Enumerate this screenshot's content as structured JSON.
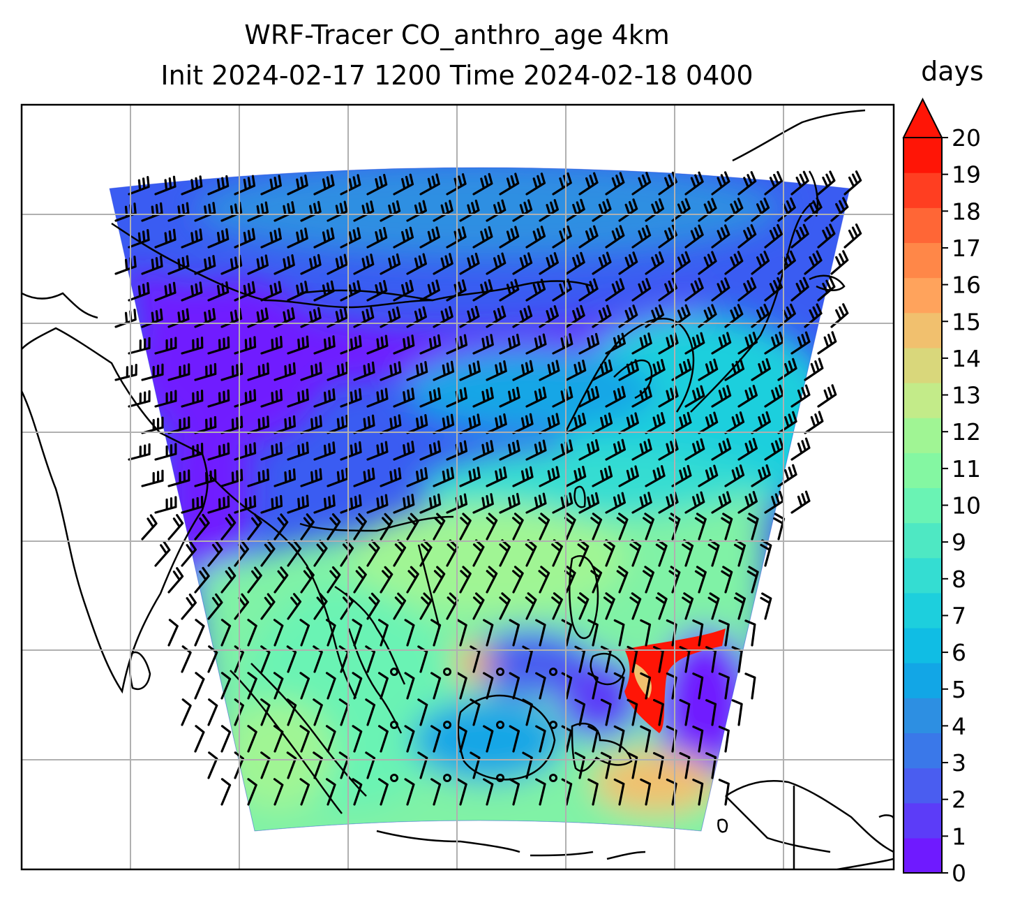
{
  "title": {
    "line1": "WRF-Tracer CO_anthro_age 4km",
    "line2": "Init 2024-02-17 1200 Time 2024-02-18 0400"
  },
  "colorbar": {
    "label": "days",
    "min": 0,
    "max": 20,
    "extend": "max",
    "ticks": [
      "0",
      "1",
      "2",
      "3",
      "4",
      "5",
      "6",
      "7",
      "8",
      "9",
      "10",
      "11",
      "12",
      "13",
      "14",
      "15",
      "16",
      "17",
      "18",
      "19",
      "20"
    ],
    "colors": [
      "#6f1aff",
      "#5c3cf8",
      "#4a5df0",
      "#3a78e9",
      "#2d8fe2",
      "#12a6e6",
      "#10bde4",
      "#1dcfdd",
      "#34ddd2",
      "#4ee8c3",
      "#6af3b4",
      "#84f7a2",
      "#a0f594",
      "#c3eb89",
      "#d9d77b",
      "#f1c06e",
      "#ffa35c",
      "#ff8748",
      "#ff6636",
      "#ff3e21",
      "#ff1506"
    ],
    "extend_color": "#ff1506"
  },
  "map": {
    "grid": "on",
    "domain_colors": {
      "north": "#3a5cf2",
      "central_band": "#6f1aff",
      "tropics": "#80f2a6",
      "hotspot": "#ff1506"
    }
  }
}
